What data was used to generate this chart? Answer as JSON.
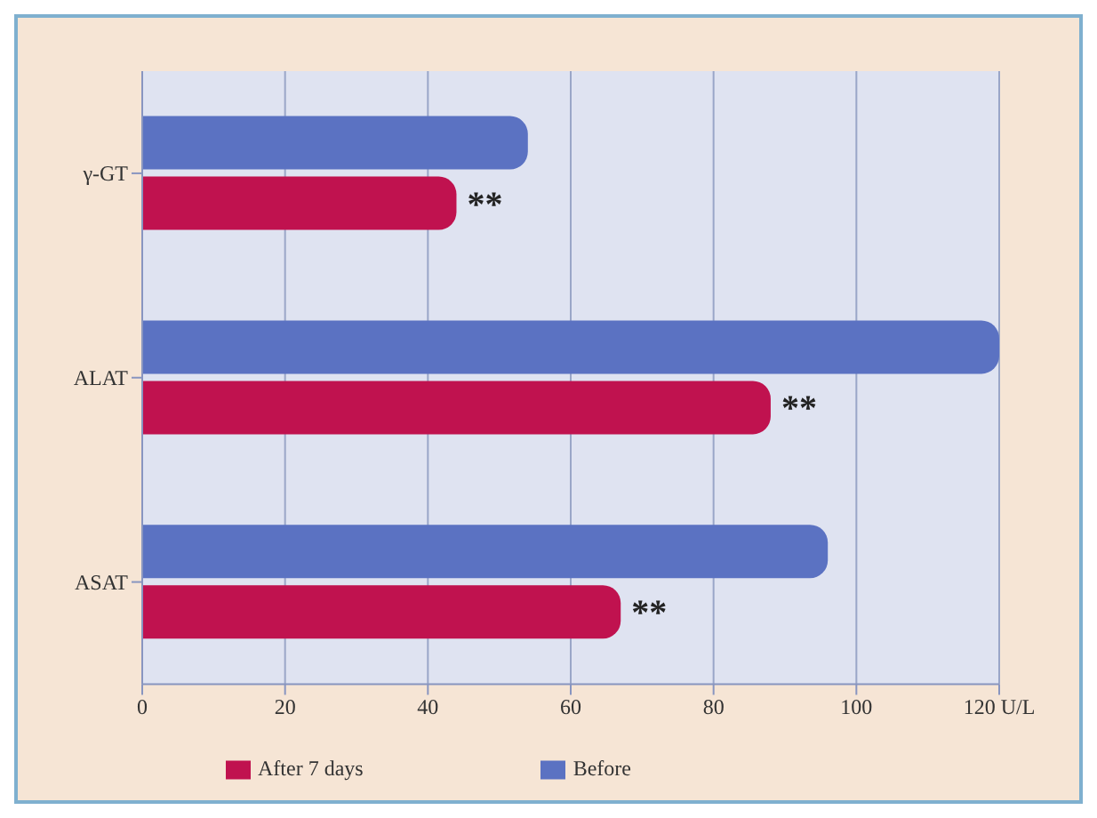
{
  "chart_data": {
    "type": "bar",
    "orientation": "horizontal",
    "categories": [
      "γ-GT",
      "ALAT",
      "ASAT"
    ],
    "series": [
      {
        "name": "Before",
        "color": "#5b72c2",
        "values": [
          54,
          120,
          96
        ]
      },
      {
        "name": "After 7 days",
        "color": "#c0124f",
        "values": [
          44,
          88,
          67
        ]
      }
    ],
    "xlim": [
      0,
      120
    ],
    "xticks": [
      0,
      20,
      40,
      60,
      80,
      100,
      {
        "value": 120,
        "label": "120 U/L"
      }
    ],
    "grid": "x",
    "legend": "bottom",
    "annotations": [
      {
        "text": "**",
        "x": 44,
        "y": "γ-GT"
      },
      {
        "text": "**",
        "x": 88,
        "y": "ALAT"
      },
      {
        "text": "**",
        "x": 67,
        "y": "ASAT"
      }
    ]
  }
}
